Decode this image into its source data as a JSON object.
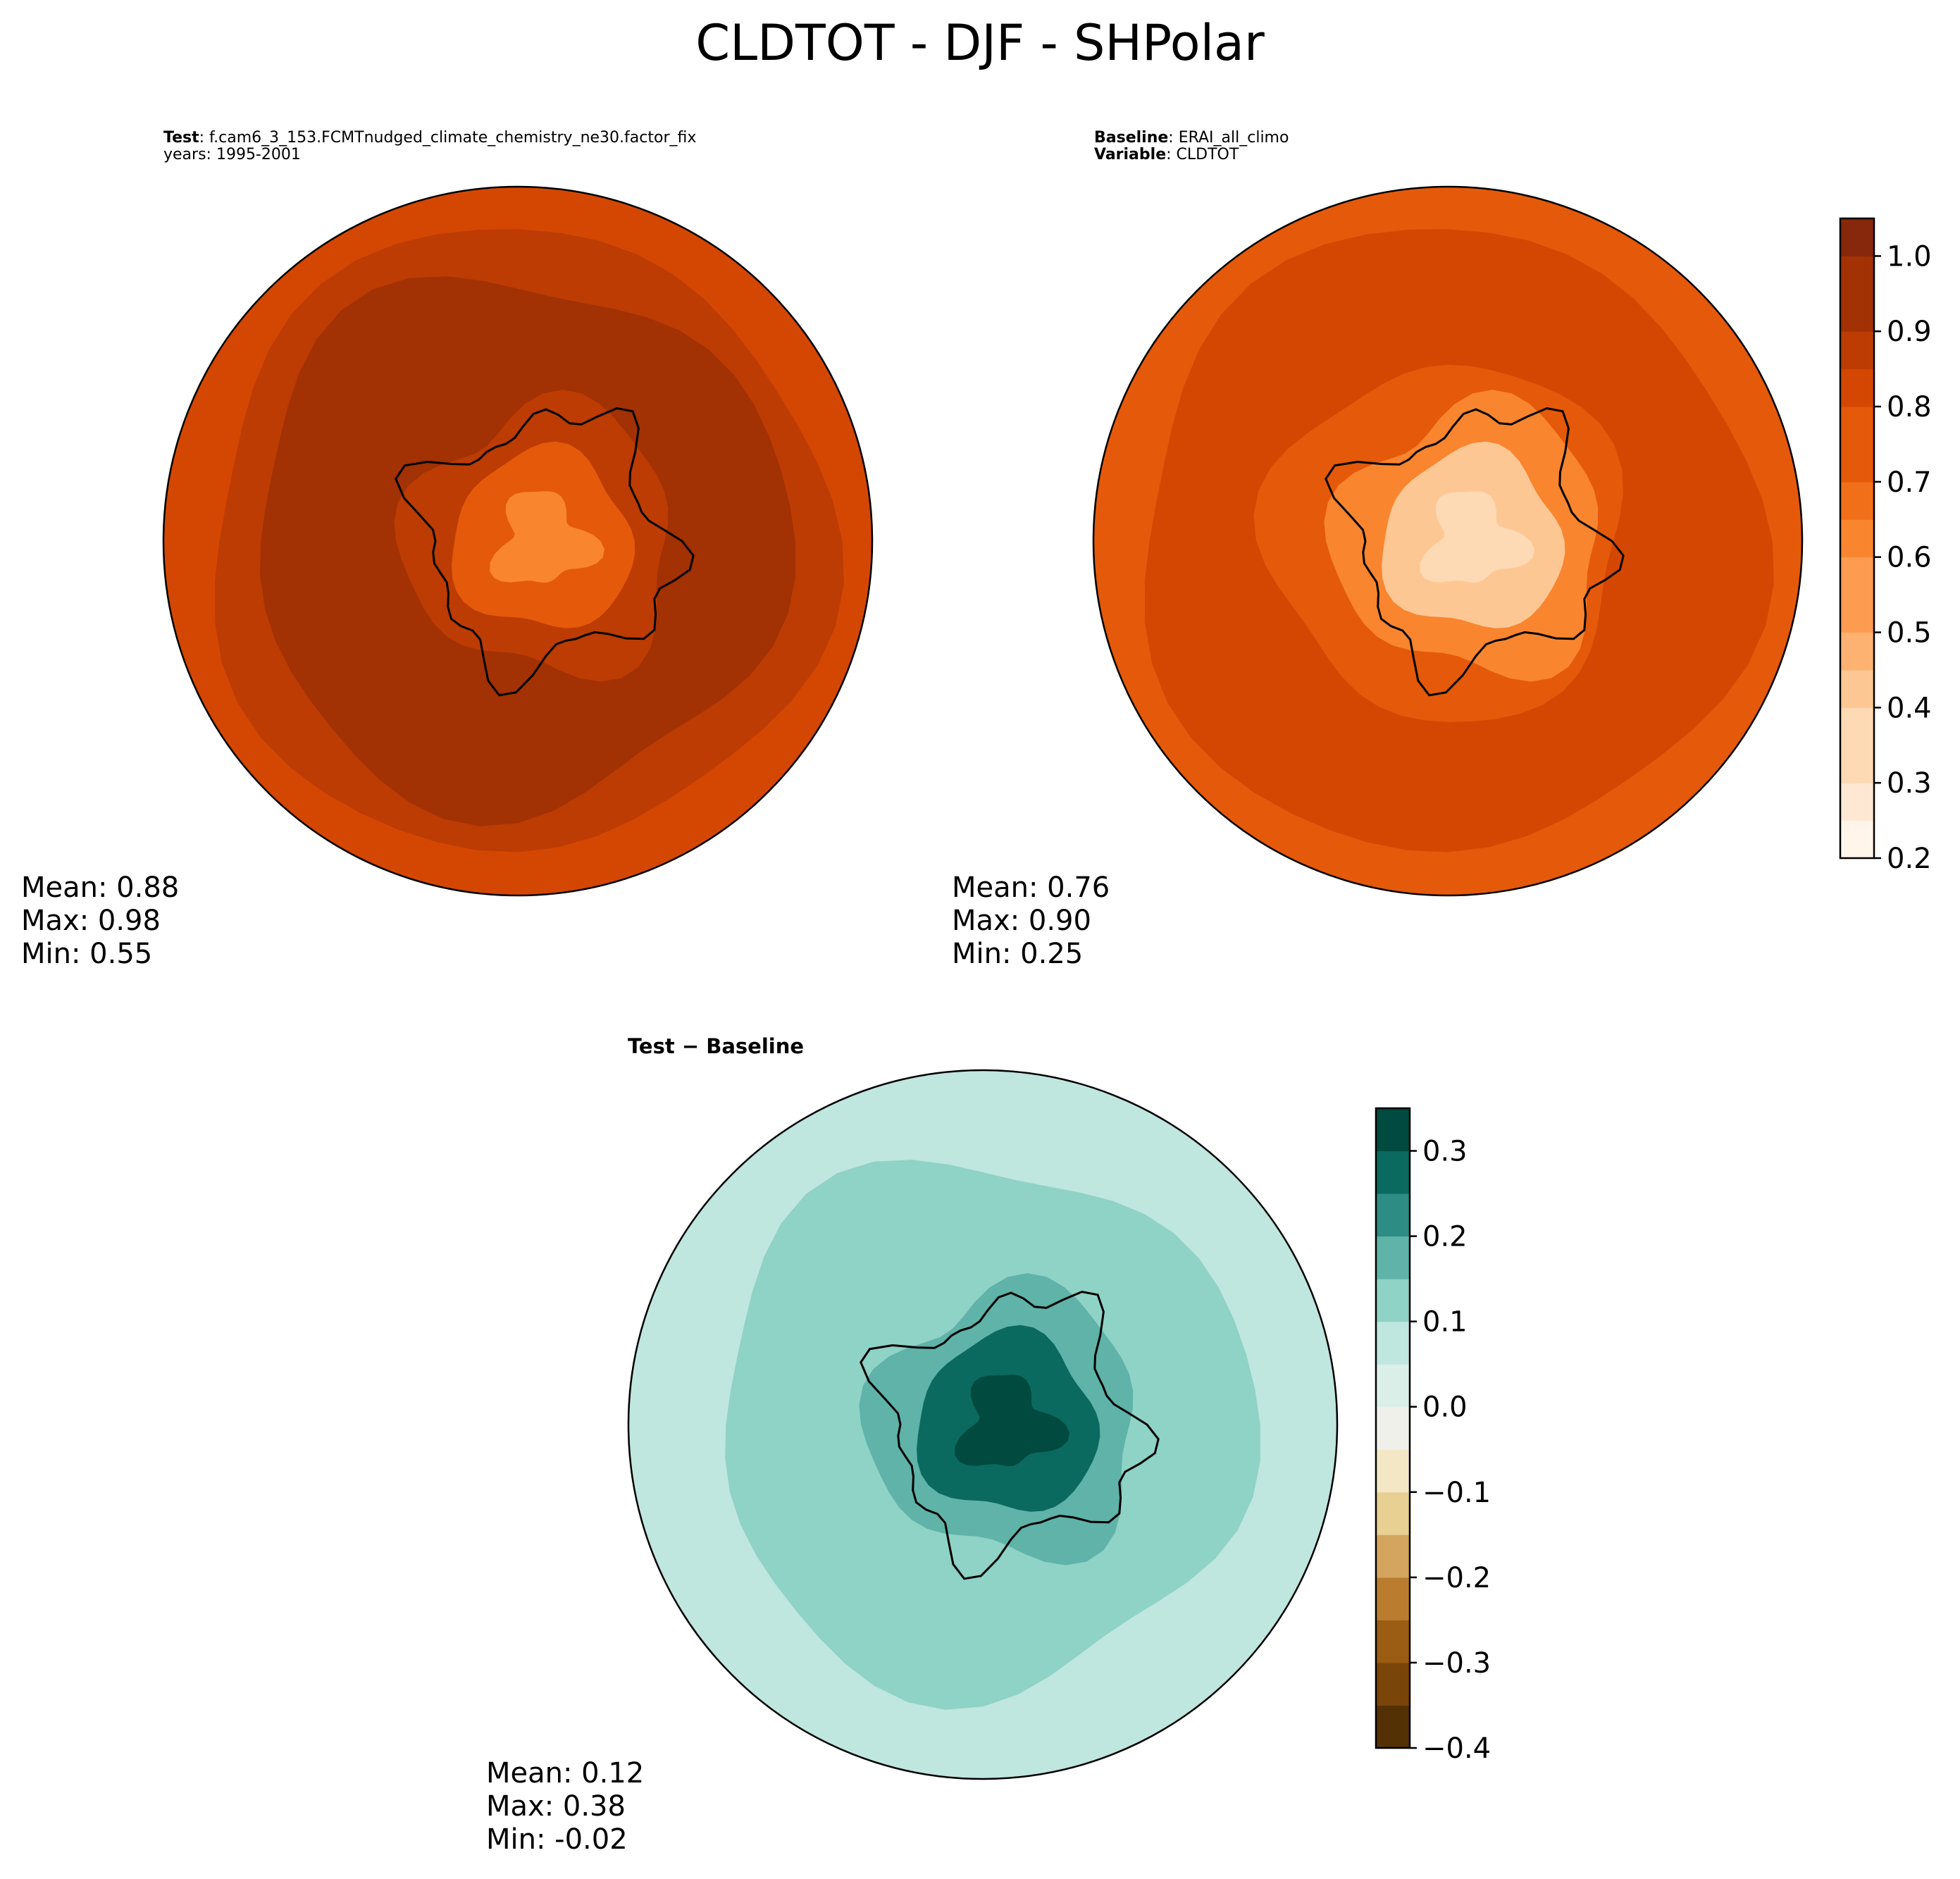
{
  "figure": {
    "suptitle": "CLDTOT - DJF - SHPolar"
  },
  "panels": {
    "test": {
      "label_bold": "Test",
      "label_text": ": f.cam6_3_153.FCMTnudged_climate_chemistry_ne30.factor_fix",
      "years": "years: 1995-2001",
      "mean": "Mean:  0.88",
      "max": "Max:  0.98",
      "min": "Min:  0.55"
    },
    "baseline": {
      "label_bold": "Baseline",
      "label_text": ": ERAI_all_climo",
      "variable_bold": "Variable",
      "variable_text": ": CLDTOT",
      "mean": "Mean:  0.76",
      "max": "Max:  0.90",
      "min": "Min:  0.25"
    },
    "diff": {
      "title": "Test − Baseline",
      "mean": "Mean:  0.12",
      "max": "Max:  0.38",
      "min": "Min: -0.02"
    }
  },
  "colors": {
    "oranges": [
      "#fff5eb",
      "#fee8d3",
      "#fdd9b4",
      "#fdc794",
      "#fdb272",
      "#fd9c51",
      "#f9852f",
      "#f16f19",
      "#e5590a",
      "#d44702",
      "#bc3c03",
      "#a23103",
      "#87270b"
    ],
    "brbg": [
      "#543005",
      "#7a4508",
      "#9b5c13",
      "#ba7d2f",
      "#d3a55e",
      "#e8cf92",
      "#f4e7c6",
      "#f0f0ea",
      "#dbefe9",
      "#bfe6df",
      "#8fd2c6",
      "#5fb3a9",
      "#2d8c84",
      "#0b6a60",
      "#004a3f"
    ],
    "ocean_test": "#a23103",
    "ocean_base": "#d44702",
    "ocean_diff": "#bfe6df"
  },
  "chart_data": [
    {
      "type": "heatmap",
      "name": "test",
      "projection": "south-polar-stereographic",
      "variable": "CLDTOT",
      "season": "DJF",
      "mean": 0.88,
      "max": 0.98,
      "min": 0.55,
      "colorbar": "shared-right",
      "ring_values_outer_to_inner": [
        0.82,
        0.88,
        0.92,
        0.95,
        0.93,
        0.85,
        0.72,
        0.62
      ]
    },
    {
      "type": "heatmap",
      "name": "baseline",
      "projection": "south-polar-stereographic",
      "variable": "CLDTOT",
      "season": "DJF",
      "mean": 0.76,
      "max": 0.9,
      "min": 0.25,
      "colorbar": {
        "levels": [
          0.2,
          0.25,
          0.3,
          0.35,
          0.4,
          0.45,
          0.5,
          0.55,
          0.6,
          0.65,
          0.7,
          0.75,
          0.8,
          0.85,
          0.9,
          0.95,
          1.0,
          1.05
        ],
        "ticks": [
          0.2,
          0.3,
          0.4,
          0.5,
          0.6,
          0.7,
          0.8,
          0.9,
          1.0
        ],
        "tick_labels": [
          "0.2",
          "0.3",
          "0.4",
          "0.5",
          "0.6",
          "0.7",
          "0.8",
          "0.9",
          "1.0"
        ],
        "cmap": "Oranges",
        "location": "right"
      },
      "ring_values_outer_to_inner": [
        0.78,
        0.8,
        0.82,
        0.82,
        0.78,
        0.6,
        0.4,
        0.3
      ]
    },
    {
      "type": "heatmap",
      "name": "difference",
      "title": "Test − Baseline",
      "projection": "south-polar-stereographic",
      "mean": 0.12,
      "max": 0.38,
      "min": -0.02,
      "colorbar": {
        "levels": [
          -0.4,
          -0.35,
          -0.3,
          -0.25,
          -0.2,
          -0.15,
          -0.1,
          -0.05,
          0.0,
          0.05,
          0.1,
          0.15,
          0.2,
          0.25,
          0.3,
          0.35
        ],
        "ticks": [
          -0.4,
          -0.3,
          -0.2,
          -0.1,
          0.0,
          0.1,
          0.2,
          0.3
        ],
        "tick_labels": [
          "−0.4",
          "−0.3",
          "−0.2",
          "−0.1",
          "0.0",
          "0.1",
          "0.2",
          "0.3"
        ],
        "cmap": "BrBG",
        "location": "right"
      },
      "ring_values_outer_to_inner": [
        0.05,
        0.08,
        0.1,
        0.12,
        0.1,
        0.15,
        0.25,
        0.32
      ]
    }
  ]
}
